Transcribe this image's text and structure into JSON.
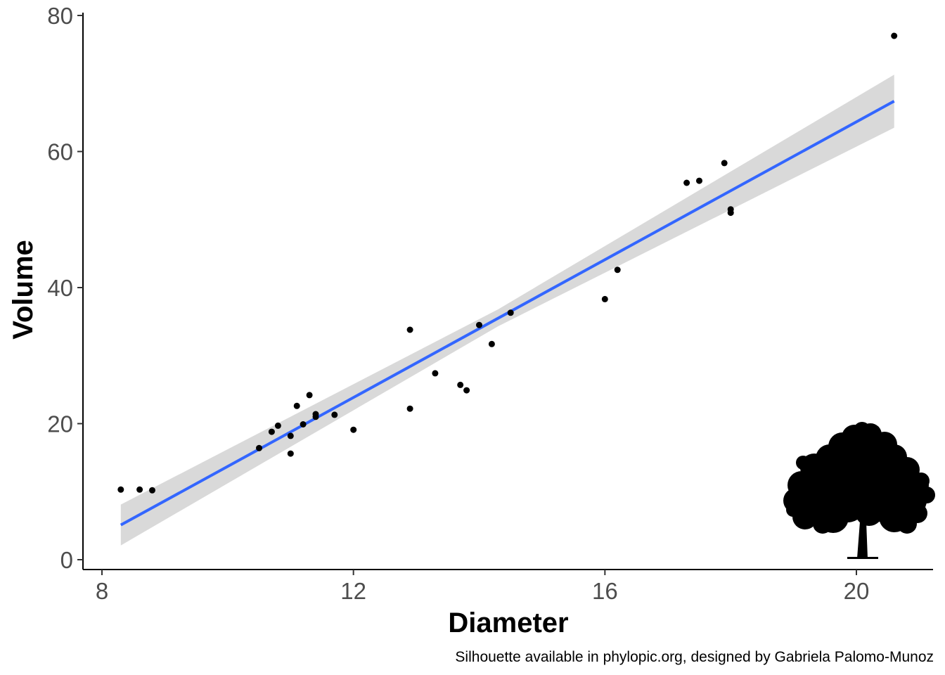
{
  "chart_data": {
    "type": "scatter",
    "title": "",
    "xlabel": "Diameter",
    "ylabel": "Volume",
    "xlim": [
      7.9,
      21.0
    ],
    "ylim": [
      -1.5,
      80.0
    ],
    "x_ticks": [
      8,
      12,
      16,
      20
    ],
    "y_ticks": [
      0,
      20,
      40,
      60,
      80
    ],
    "grid": false,
    "legend": "none",
    "caption": "Silhouette available in phylopic.org, designed by Gabriela Palomo-Munoz",
    "points": {
      "x": [
        8.3,
        8.6,
        8.8,
        10.5,
        10.7,
        10.8,
        11.0,
        11.0,
        11.1,
        11.2,
        11.3,
        11.4,
        11.4,
        11.7,
        12.0,
        12.9,
        12.9,
        13.3,
        13.7,
        13.8,
        14.0,
        14.2,
        14.5,
        16.0,
        16.2,
        17.3,
        17.5,
        17.9,
        18.0,
        18.0,
        20.6
      ],
      "y": [
        10.3,
        10.3,
        10.2,
        16.4,
        18.8,
        19.7,
        15.6,
        18.2,
        22.6,
        19.9,
        24.2,
        21.0,
        21.4,
        21.3,
        19.1,
        22.2,
        33.8,
        27.4,
        25.7,
        24.9,
        34.5,
        31.7,
        36.3,
        38.3,
        42.6,
        55.4,
        55.7,
        58.3,
        51.5,
        51.0,
        77.0
      ],
      "color": "#000000"
    },
    "fit_line": {
      "method": "linear regression",
      "x": [
        8.3,
        20.6
      ],
      "y": [
        5.1,
        67.4
      ],
      "color": "#3366ff"
    },
    "confidence_band": {
      "x": [
        8.3,
        14.3,
        20.6
      ],
      "lower": [
        2.1,
        34.3,
        63.5
      ],
      "upper": [
        8.1,
        36.8,
        71.3
      ],
      "color": "#d9d9d9"
    },
    "silhouette": {
      "icon": "tree-icon",
      "color": "#000000"
    }
  }
}
